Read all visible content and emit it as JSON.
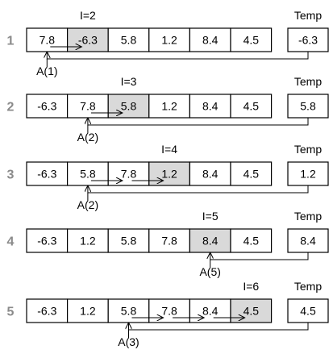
{
  "temp_label": "Temp",
  "colors": {
    "highlight": "#d9d9d9",
    "stroke": "#000000",
    "row_number": "#8a8a8a"
  },
  "rows": [
    {
      "number": "1",
      "values": [
        "7.8",
        "-6.3",
        "5.8",
        "1.2",
        "8.4",
        "4.5"
      ],
      "highlight_index": 1,
      "i_label": "I=2",
      "i_cell_index": 1,
      "temp_value": "-6.3",
      "shift_from_index": 0,
      "shift_to_index": 1,
      "pointer_label": "A(1)",
      "pointer_index": 0
    },
    {
      "number": "2",
      "values": [
        "-6.3",
        "7.8",
        "5.8",
        "1.2",
        "8.4",
        "4.5"
      ],
      "highlight_index": 2,
      "i_label": "I=3",
      "i_cell_index": 2,
      "temp_value": "5.8",
      "shift_from_index": 1,
      "shift_to_index": 2,
      "pointer_label": "A(2)",
      "pointer_index": 1
    },
    {
      "number": "3",
      "values": [
        "-6.3",
        "5.8",
        "7.8",
        "1.2",
        "8.4",
        "4.5"
      ],
      "highlight_index": 3,
      "i_label": "I=4",
      "i_cell_index": 3,
      "temp_value": "1.2",
      "shift_from_index": 1,
      "shift_to_index": 3,
      "pointer_label": "A(2)",
      "pointer_index": 1
    },
    {
      "number": "4",
      "values": [
        "-6.3",
        "1.2",
        "5.8",
        "7.8",
        "8.4",
        "4.5"
      ],
      "highlight_index": 4,
      "i_label": "I=5",
      "i_cell_index": 4,
      "temp_value": "8.4",
      "shift_from_index": null,
      "shift_to_index": null,
      "pointer_label": "A(5)",
      "pointer_index": 4
    },
    {
      "number": "5",
      "values": [
        "-6.3",
        "1.2",
        "5.8",
        "7.8",
        "8.4",
        "4.5"
      ],
      "highlight_index": 5,
      "i_label": "I=6",
      "i_cell_index": 5,
      "temp_value": "4.5",
      "shift_from_index": 2,
      "shift_to_index": 5,
      "pointer_label": "A(3)",
      "pointer_index": 2
    }
  ]
}
